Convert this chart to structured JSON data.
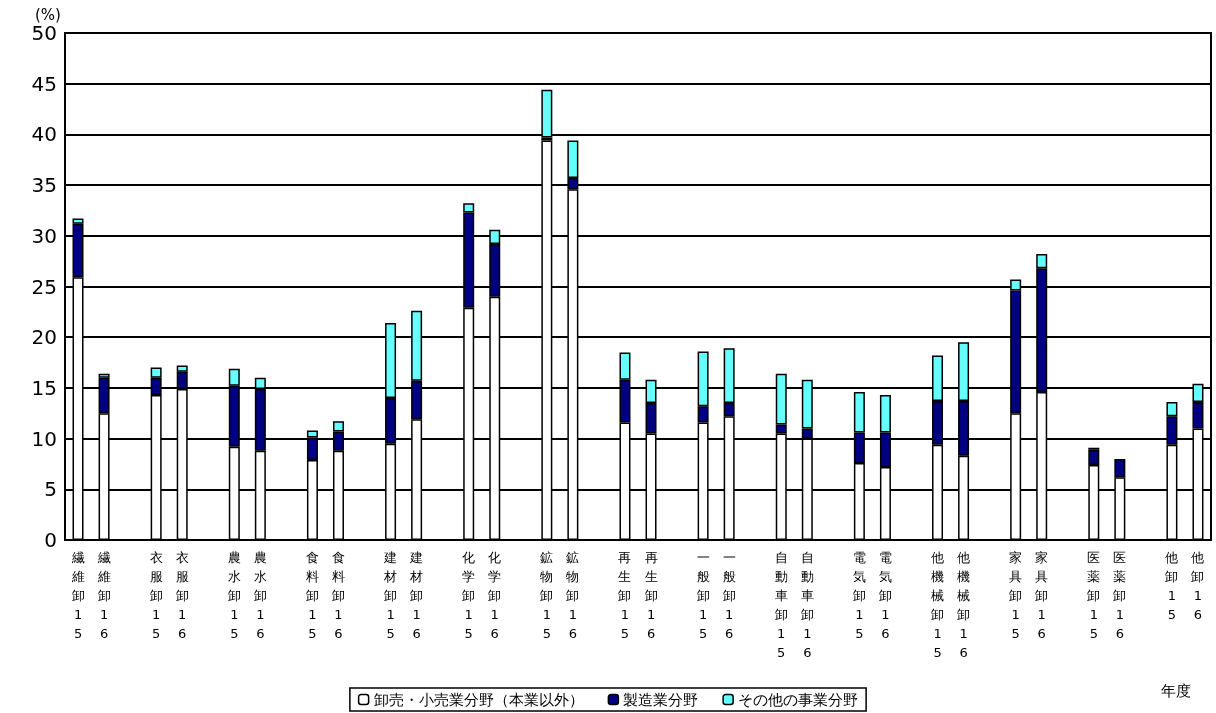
{
  "chart_data": {
    "type": "bar",
    "stacked": true,
    "ylabel": "(%)",
    "xlabel": "年度",
    "categories": [
      "繊維卸15",
      "繊維卸16",
      null,
      "衣服卸15",
      "衣服卸16",
      null,
      "農水卸15",
      "農水卸16",
      null,
      "食料卸15",
      "食料卸16",
      null,
      "建材卸15",
      "建材卸16",
      null,
      "化学卸15",
      "化学卸16",
      null,
      "鉱物卸15",
      "鉱物卸16",
      null,
      "再生卸15",
      "再生卸16",
      null,
      "一般卸15",
      "一般卸16",
      null,
      "自動車卸15",
      "自動車卸16",
      null,
      "電気卸15",
      "電気卸16",
      null,
      "他機械卸15",
      "他機械卸16",
      null,
      "家具卸15",
      "家具卸16",
      null,
      "医薬卸15",
      "医薬卸16",
      null,
      "他卸15",
      "他卸16"
    ],
    "series": [
      {
        "name": "卸売・小売業分野（本業以外）",
        "color": "#ffffff",
        "values": [
          25.9,
          12.5,
          null,
          14.3,
          14.9,
          null,
          9.2,
          8.8,
          null,
          7.9,
          8.8,
          null,
          9.5,
          11.9,
          null,
          22.9,
          24.0,
          null,
          39.4,
          34.6,
          null,
          11.6,
          10.5,
          null,
          11.6,
          12.2,
          null,
          10.5,
          10.0,
          null,
          7.6,
          7.2,
          null,
          9.4,
          8.3,
          null,
          12.5,
          14.6,
          null,
          7.4,
          6.2,
          null,
          9.4,
          11.0
        ]
      },
      {
        "name": "製造業分野",
        "color": "#000080",
        "values": [
          5.3,
          3.5,
          null,
          1.7,
          1.7,
          null,
          6.0,
          6.1,
          null,
          2.2,
          1.9,
          null,
          4.5,
          3.8,
          null,
          9.4,
          5.2,
          null,
          0.3,
          1.1,
          null,
          4.2,
          3.0,
          null,
          1.6,
          1.3,
          null,
          0.9,
          1.0,
          null,
          3.0,
          3.4,
          null,
          4.3,
          5.4,
          null,
          12.1,
          12.2,
          null,
          1.5,
          1.8,
          null,
          2.8,
          2.6
        ]
      },
      {
        "name": "その他の事業分野",
        "color": "#66ffff",
        "values": [
          0.5,
          0.4,
          null,
          1.0,
          0.6,
          null,
          1.7,
          1.1,
          null,
          0.7,
          1.0,
          null,
          7.4,
          6.9,
          null,
          0.9,
          1.4,
          null,
          4.7,
          3.7,
          null,
          2.7,
          2.3,
          null,
          5.4,
          5.4,
          null,
          5.0,
          4.8,
          null,
          4.0,
          3.7,
          null,
          4.5,
          5.8,
          null,
          1.1,
          1.4,
          null,
          0.2,
          null,
          null,
          1.4,
          1.8
        ]
      }
    ],
    "ylim": [
      0,
      50
    ],
    "yticks": [
      0,
      5,
      10,
      15,
      20,
      25,
      30,
      35,
      40,
      45,
      50
    ],
    "grid": "y",
    "legend": "bottom"
  }
}
